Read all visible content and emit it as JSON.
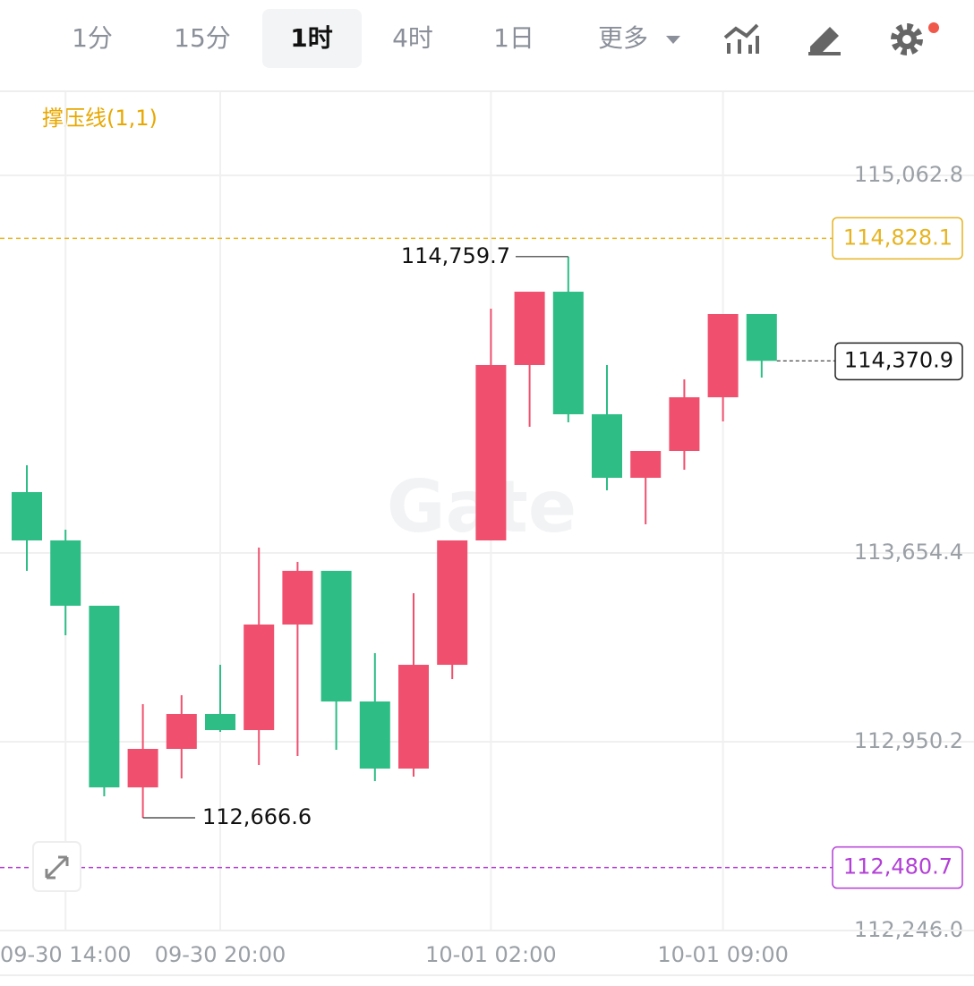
{
  "toolbar": {
    "tabs": [
      "1分",
      "15分",
      "1时",
      "4时",
      "1日",
      "更多"
    ],
    "active": "1时"
  },
  "indicator": "撑压线(1,1)",
  "chart_data": {
    "type": "candlestick",
    "watermark": "Gate",
    "categories": [
      null,
      "09-30 14:00",
      null,
      null,
      null,
      "09-30 20:00",
      null,
      null,
      null,
      null,
      null,
      null,
      "10-01 02:00",
      null,
      null,
      null,
      null,
      null,
      "10-01 09:00",
      null
    ],
    "open": [
      113881.3,
      113701.1,
      113457.5,
      112780.0,
      112923.5,
      113053.7,
      112993.6,
      113387.4,
      113587.7,
      113100.4,
      112850.1,
      113237.2,
      113701.1,
      114355.3,
      114628.9,
      114171.7,
      113934.7,
      114034.9,
      114235.1,
      114545.5
    ],
    "high": [
      113981.5,
      113741.2,
      113457.5,
      113090.4,
      113123.8,
      113237.2,
      113674.4,
      113621.0,
      113587.7,
      113280.6,
      113504.2,
      113701.1,
      114565.5,
      114628.9,
      114759.7,
      114355.3,
      114034.9,
      114301.9,
      114545.5,
      114545.5
    ],
    "low": [
      113587.7,
      113347.4,
      112746.6,
      112666.6,
      112813.4,
      112986.9,
      112863.4,
      112896.8,
      112920.2,
      112803.4,
      112820.0,
      113183.8,
      113701.1,
      114125.0,
      114141.7,
      113888.0,
      113761.2,
      113964.8,
      114145.0,
      114308.5
    ],
    "close": [
      113701.1,
      113457.5,
      112780.0,
      112923.5,
      113053.7,
      112993.6,
      113387.4,
      113587.7,
      113100.4,
      112850.1,
      113237.2,
      113701.1,
      114355.3,
      114628.9,
      114171.7,
      113934.7,
      114034.9,
      114235.1,
      114545.5,
      114370.9
    ],
    "up_color": "#f0506e",
    "down_color": "#2dbd85",
    "ylim": [
      112246.0,
      115373.2
    ],
    "yticks": [
      {
        "value": 115062.8,
        "label": "115,062.8"
      },
      {
        "value": 113654.4,
        "label": "113,654.4"
      },
      {
        "value": 112950.2,
        "label": "112,950.2"
      },
      {
        "value": 112246.0,
        "label": "112,246.0"
      }
    ],
    "grid": true,
    "levels": [
      {
        "value": 114828.1,
        "label": "114,828.1",
        "color": "#e6b422"
      },
      {
        "value": 112480.7,
        "label": "112,480.7",
        "color": "#b23fd6"
      }
    ],
    "last_price": {
      "value": 114370.9,
      "label": "114,370.9"
    },
    "max_marker": {
      "index": 14,
      "value": 114759.7,
      "label": "114,759.7"
    },
    "min_marker": {
      "index": 3,
      "value": 112666.6,
      "label": "112,666.6"
    }
  }
}
